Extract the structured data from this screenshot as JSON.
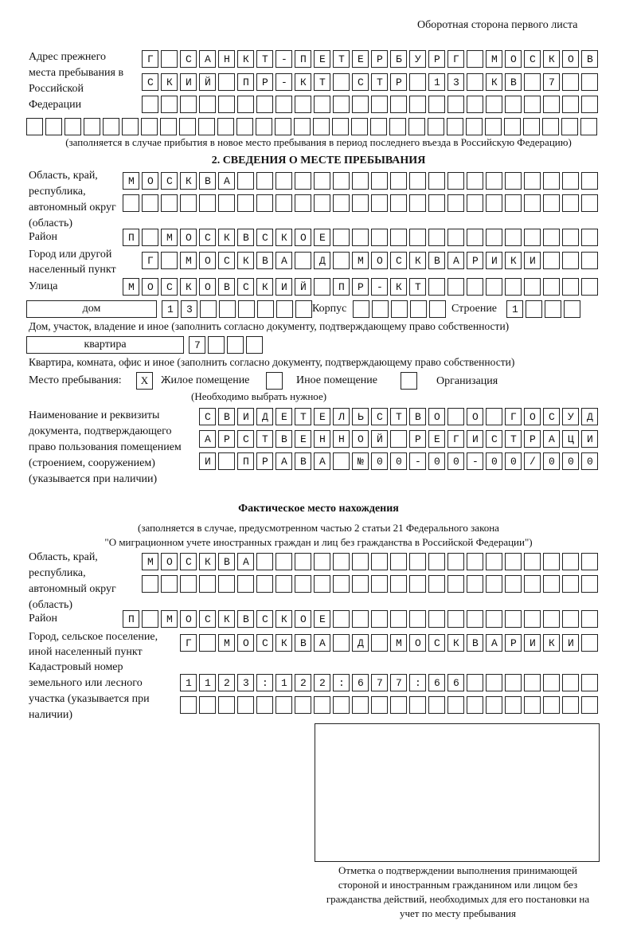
{
  "header": "Оборотная сторона первого листа",
  "prev_address": {
    "label": "Адрес прежнего места пребывания в Российской Федерации",
    "rows": [
      "Г САНКТ-ПЕТЕРБУРГ МОСКОВ",
      "СКИЙ ПР-КТ СТР 13 КВ 7  ",
      "                        ",
      "                              "
    ],
    "note": "(заполняется в случае прибытия в новое место пребывания в период последнего въезда в Российскую Федерацию)"
  },
  "section2": {
    "title": "2. СВЕДЕНИЯ О МЕСТЕ ПРЕБЫВАНИЯ",
    "region_label": "Область, край, республика, автономный округ (область)",
    "region_rows": [
      "МОСКВА                   ",
      "                         "
    ],
    "district_label": "Район",
    "district": "П МОСКВСКОЕ              ",
    "city_label": "Город или другой населенный пункт",
    "city": "Г МОСКВА Д МОСКВАРИКИ   ",
    "street_label": "Улица",
    "street": "МОСКОВСКИЙ ПР-КТ         ",
    "house_type": "дом",
    "house_number": "13      ",
    "korpus_label": "Корпус",
    "korpus": "     ",
    "stroenie_label": "Строение",
    "stroenie": "1   ",
    "house_note": "Дом, участок, владение и иное (заполнить согласно документу, подтверждающему право собственности)",
    "apt_type": "квартира",
    "apt_number": "7   ",
    "apt_note": "Квартира, комната, офис и иное (заполнить согласно документу, подтверждающему право собственности)",
    "place_label": "Место пребывания:",
    "options": [
      {
        "label": "Жилое помещение",
        "checked": "X"
      },
      {
        "label": "Иное помещение",
        "checked": ""
      },
      {
        "label": "Организация",
        "checked": ""
      }
    ],
    "choose_note": "(Необходимо выбрать нужное)",
    "doc_label": "Наименование и реквизиты документа, подтверждающего право пользования помещением (строением, сооружением) (указывается при наличии)",
    "doc_rows": [
      "СВИДЕТЕЛЬСТВО О ГОСУД",
      "АРСТВЕННОЙ РЕГИСТРАЦИ",
      "И ПРАВА №00-00-00/000"
    ]
  },
  "actual": {
    "title": "Фактическое место нахождения",
    "note1": "(заполняется в случае, предусмотренном частью 2 статьи 21 Федерального закона",
    "note2": "\"О миграционном учете иностранных граждан и лиц без гражданства в Российской Федерации\")",
    "region_label": "Область, край, республика, автономный округ (область)",
    "region_rows": [
      "МОСКВА                  ",
      "                        "
    ],
    "district_label": "Район",
    "district": "П МОСКВСКОЕ              ",
    "city_label": "Город, сельское поселение, иной населенный пункт",
    "city": "Г МОСКВА Д МОСКВАРИКИ ",
    "cadastral_label": "Кадастровый номер земельного или лесного участка (указывается при наличии)",
    "cadastral_rows": [
      "1123:122:677:66       ",
      "                      "
    ]
  },
  "stamp_caption": "Отметка о подтверждении выполнения принимающей стороной и иностранным гражданином или лицом без гражданства действий, необходимых для его постановки на учет по месту пребывания"
}
